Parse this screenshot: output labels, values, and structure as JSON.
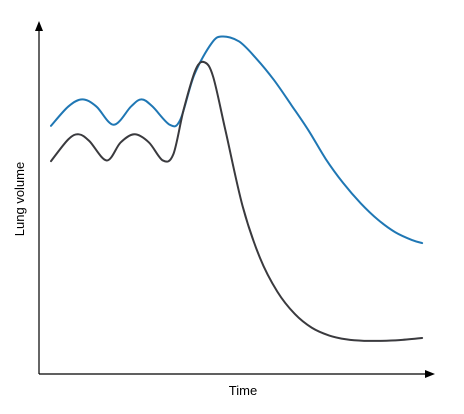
{
  "chart_data": {
    "type": "line",
    "title": "",
    "xlabel": "Time",
    "ylabel": "Lung volume",
    "grid": false,
    "legend": "none",
    "xlim": [
      0,
      100
    ],
    "ylim": [
      0,
      100
    ],
    "series": [
      {
        "color": "#1f77b4",
        "points": [
          [
            3.1,
            70.3
          ],
          [
            7.6,
            75.8
          ],
          [
            11.2,
            77.8
          ],
          [
            14.8,
            75.8
          ],
          [
            19.3,
            70.6
          ],
          [
            23.8,
            75.8
          ],
          [
            26.5,
            77.8
          ],
          [
            29.3,
            75.8
          ],
          [
            33.8,
            70.6
          ],
          [
            36.5,
            72.0
          ],
          [
            40.1,
            84.7
          ],
          [
            44.6,
            93.7
          ],
          [
            47.3,
            95.6
          ],
          [
            51.7,
            94.2
          ],
          [
            56.2,
            89.3
          ],
          [
            60.7,
            83.3
          ],
          [
            65.2,
            76.2
          ],
          [
            69.7,
            68.9
          ],
          [
            74.1,
            60.9
          ],
          [
            78.6,
            54.1
          ],
          [
            83.1,
            48.4
          ],
          [
            87.6,
            43.7
          ],
          [
            92.0,
            40.2
          ],
          [
            96.5,
            37.9
          ],
          [
            99.0,
            37.1
          ]
        ]
      },
      {
        "color": "#3a3a3e",
        "points": [
          [
            3.1,
            60.3
          ],
          [
            7.6,
            66.5
          ],
          [
            10.3,
            67.9
          ],
          [
            13.0,
            66.0
          ],
          [
            17.5,
            60.5
          ],
          [
            21.1,
            65.6
          ],
          [
            24.7,
            67.9
          ],
          [
            28.4,
            65.6
          ],
          [
            32.0,
            60.5
          ],
          [
            34.7,
            62.2
          ],
          [
            37.4,
            75.0
          ],
          [
            40.5,
            86.3
          ],
          [
            42.8,
            88.3
          ],
          [
            45.0,
            84.2
          ],
          [
            48.2,
            68.9
          ],
          [
            52.6,
            47.6
          ],
          [
            57.1,
            32.9
          ],
          [
            61.6,
            23.3
          ],
          [
            66.1,
            17.0
          ],
          [
            70.5,
            13.1
          ],
          [
            75.0,
            10.9
          ],
          [
            79.5,
            9.8
          ],
          [
            84.0,
            9.4
          ],
          [
            88.4,
            9.4
          ],
          [
            93.1,
            9.6
          ],
          [
            99.0,
            10.2
          ]
        ]
      }
    ]
  }
}
